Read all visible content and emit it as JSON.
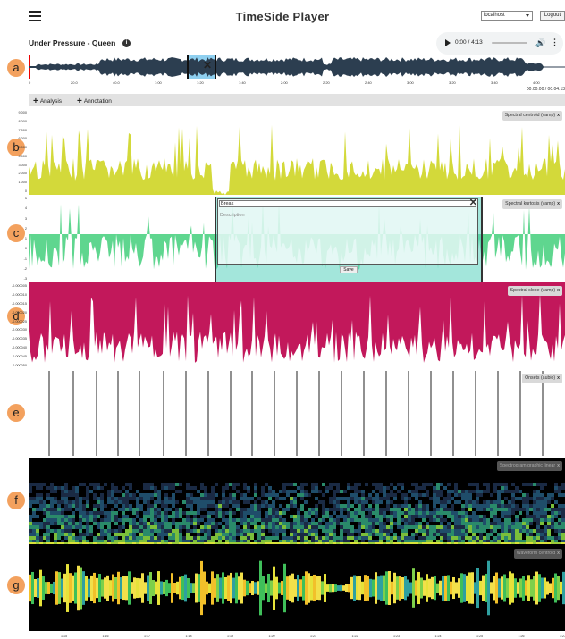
{
  "app": {
    "title": "TimeSide Player",
    "server": "localhost",
    "logout_label": "Logout"
  },
  "track": {
    "title": "Under Pressure - Queen",
    "info_icon": "info-icon"
  },
  "player": {
    "time": "0:00 / 4:13",
    "play_icon": "play-icon",
    "volume_icon": "volume-icon",
    "more_icon": "more-vert-icon",
    "progress": 0
  },
  "overview": {
    "axis_ticks": [
      "0",
      "20.0",
      "40.0",
      "1:00",
      "1:20",
      "1:40",
      "2:00",
      "2:20",
      "2:40",
      "3:00",
      "3:20",
      "3:40",
      "4:00"
    ],
    "position": "00:00:00 / 00:04:13",
    "selection_close": "✕"
  },
  "tabs": [
    {
      "icon": "+",
      "label": "Analysis"
    },
    {
      "icon": "+",
      "label": "Annotation"
    }
  ],
  "markers": [
    "a",
    "b",
    "c",
    "d",
    "e",
    "f",
    "g"
  ],
  "panels": {
    "b": {
      "label": "Spectral centroid (vamp)",
      "close": "x",
      "yticks": [
        "9,000",
        "8,000",
        "7,000",
        "6,000",
        "5,000",
        "4,000",
        "3,000",
        "2,000",
        "1,000",
        "0"
      ]
    },
    "c": {
      "label": "Spectral kurtosis (vamp)",
      "close": "x",
      "yticks": [
        "5",
        "4",
        "3",
        "2",
        "1",
        "0",
        "-1",
        "-2",
        "-3"
      ]
    },
    "d": {
      "label": "Spectral slope (vamp)",
      "close": "x",
      "yticks": [
        "-0.000005",
        "-0.000010",
        "-0.000015",
        "-0.000020",
        "-0.000025",
        "-0.000030",
        "-0.000035",
        "-0.000040",
        "-0.000045",
        "-0.000050"
      ]
    },
    "e": {
      "label": "Onsets (aubio)",
      "close": "x"
    },
    "f": {
      "label": "Spectrogram graphic linear",
      "close": "x"
    },
    "g": {
      "label": "Waveform centroid",
      "close": "x"
    }
  },
  "annotation": {
    "title_value": "Break",
    "description_placeholder": "Description",
    "save_label": "Save",
    "close": "✕"
  },
  "bottom_axis": [
    "1:15",
    "1:16",
    "1:17",
    "1:18",
    "1:19",
    "1:20",
    "1:21",
    "1:22",
    "1:23",
    "1:24",
    "1:25",
    "1:26",
    "1:27"
  ],
  "colors": {
    "centroid": "#d3d93a",
    "kurtosis": "#5fd68f",
    "slope": "#c2185b",
    "wave": "#2c3e50",
    "selection": "#8fd0f0",
    "marker": "#f3a15e"
  }
}
